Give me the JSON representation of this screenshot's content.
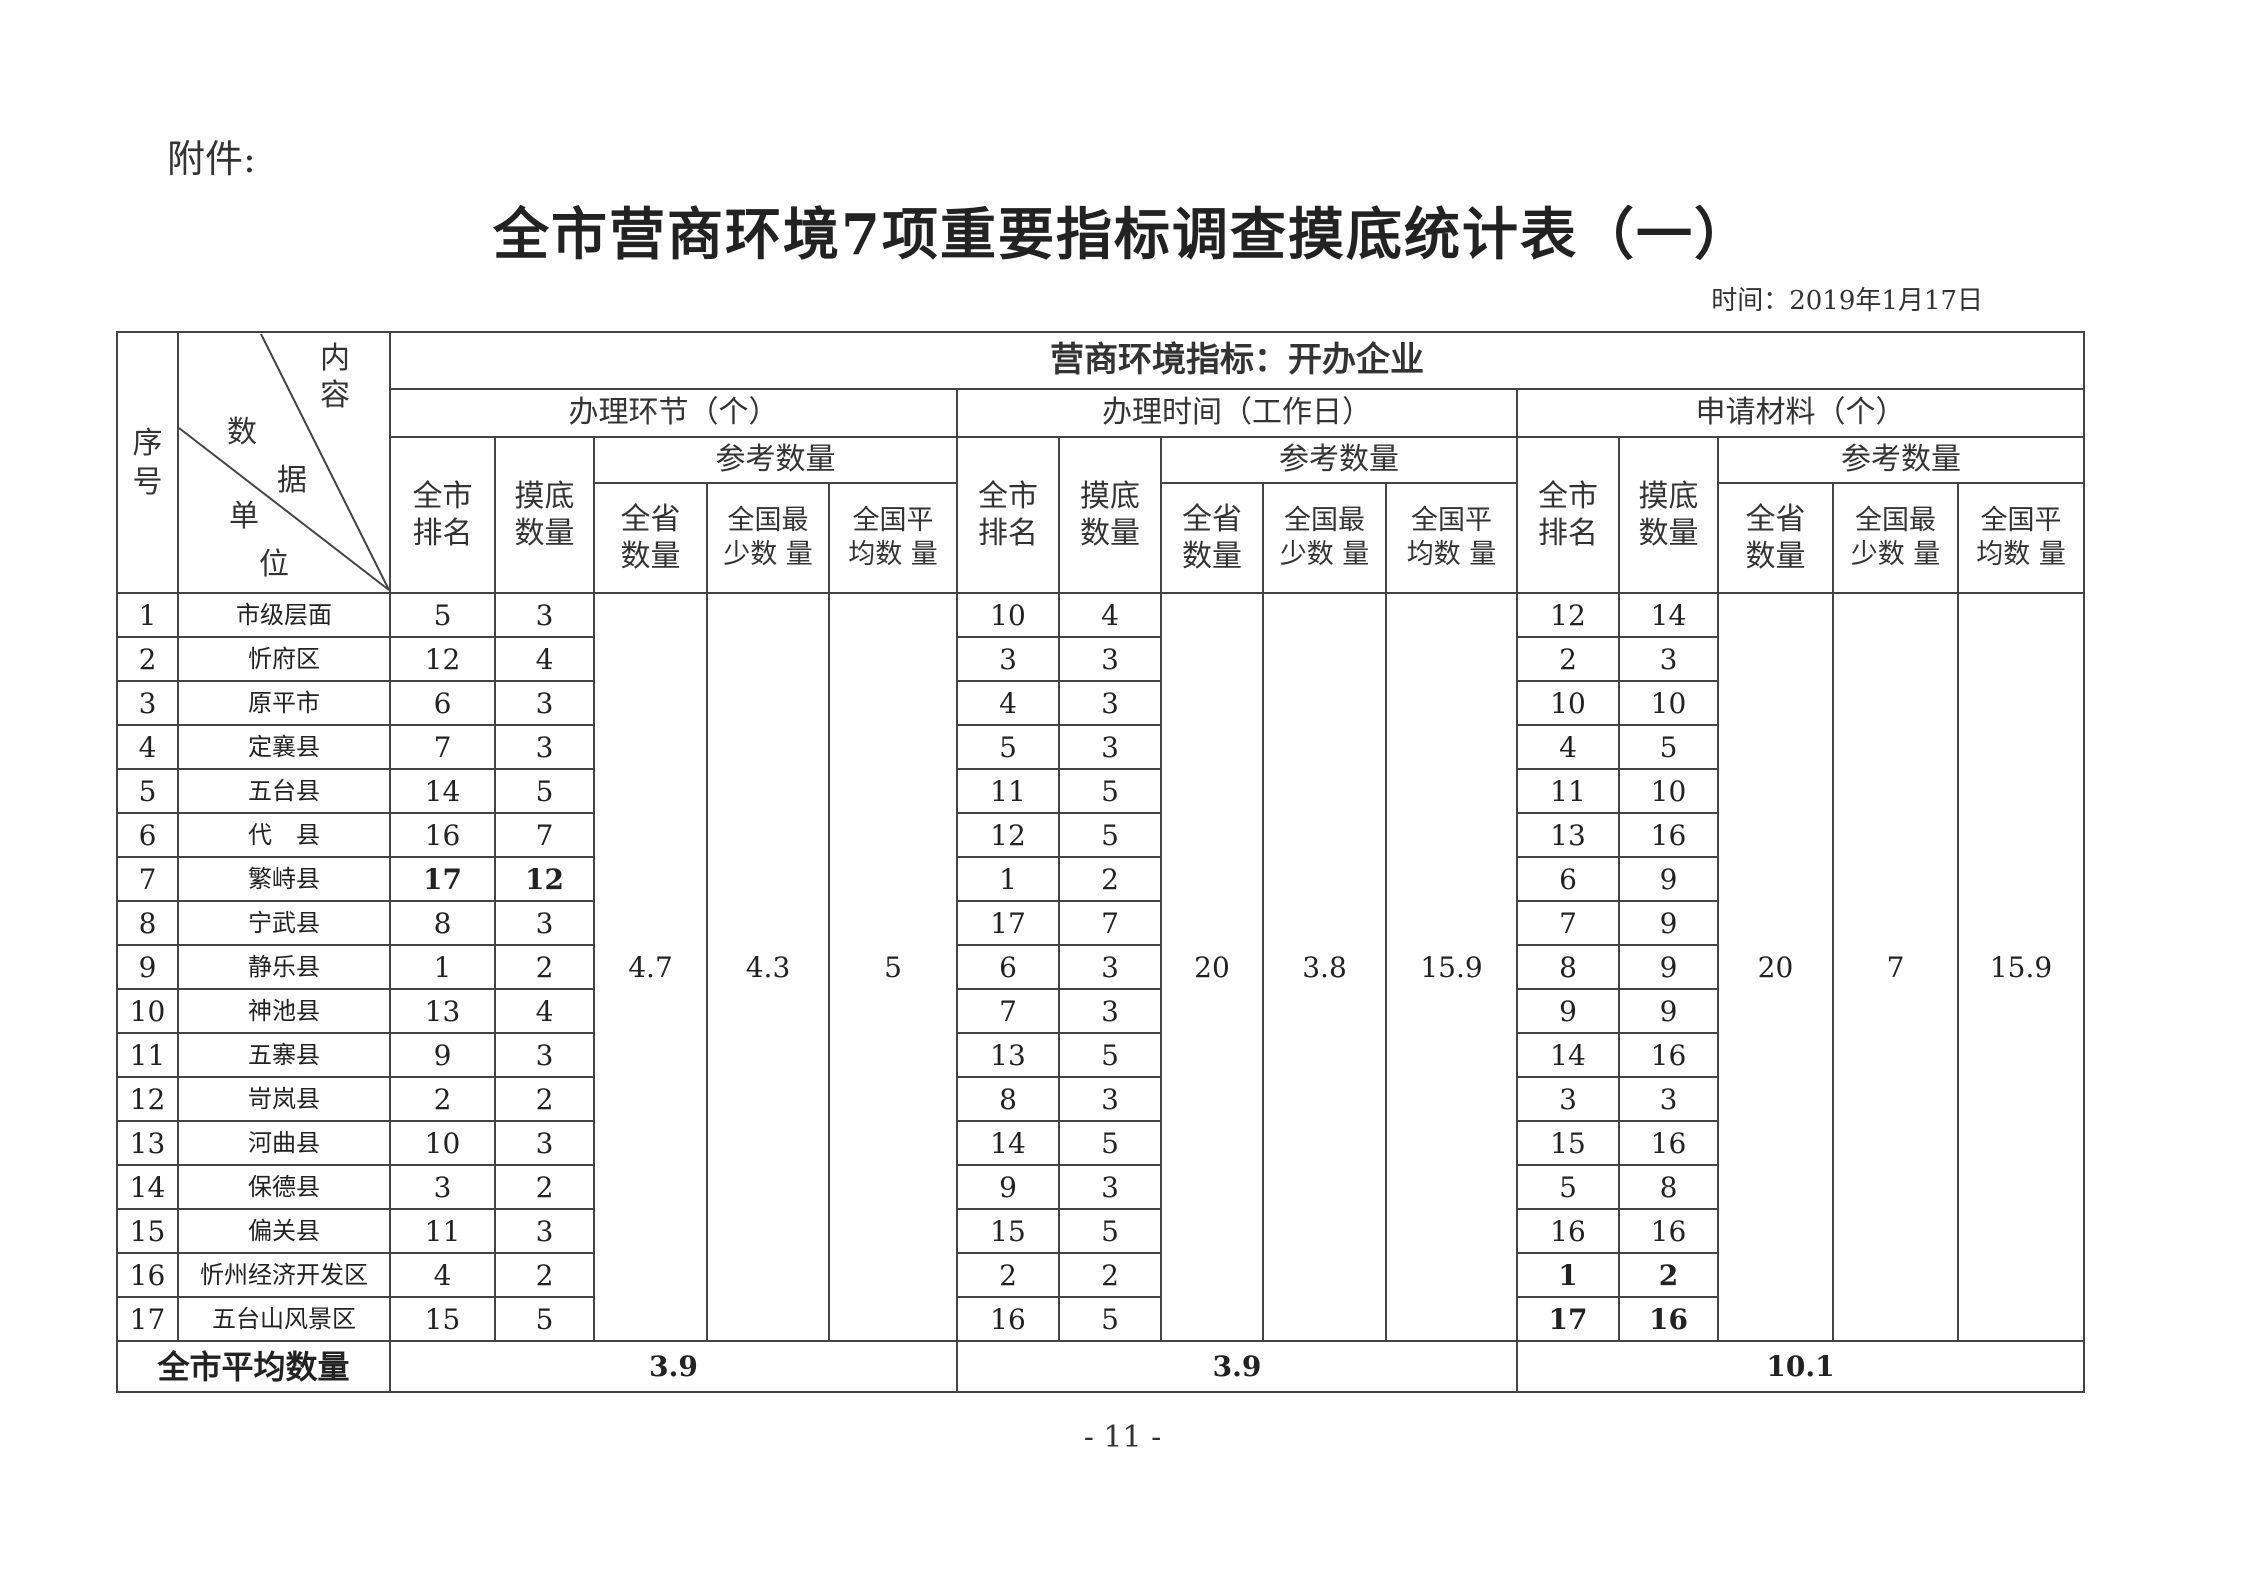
{
  "attachment_label": "附件:",
  "title": "全市营商环境7项重要指标调查摸底统计表（一）",
  "date": "时间：2019年1月17日",
  "header": {
    "seq": "序号",
    "diag": {
      "content": "内容",
      "content2": "容",
      "data": "数",
      "data2": "据",
      "unit": "单",
      "unit2": "位"
    },
    "indicator": "营商环境指标：开办企业",
    "groups": [
      "办理环节（个）",
      "办理时间（工作日）",
      "申请材料（个）"
    ],
    "city_rank": "全市排名",
    "survey_qty": "摸底数量",
    "reference": "参考数量",
    "province_qty": "全省数量",
    "national_min": "全国最少数 量",
    "national_avg": "全国平均数 量"
  },
  "rows": [
    {
      "no": "1",
      "unit": "市级层面",
      "g1": [
        "5",
        "3"
      ],
      "g2": [
        "10",
        "4"
      ],
      "g3": [
        "12",
        "14"
      ]
    },
    {
      "no": "2",
      "unit": "忻府区",
      "g1": [
        "12",
        "4"
      ],
      "g2": [
        "3",
        "3"
      ],
      "g3": [
        "2",
        "3"
      ]
    },
    {
      "no": "3",
      "unit": "原平市",
      "g1": [
        "6",
        "3"
      ],
      "g2": [
        "4",
        "3"
      ],
      "g3": [
        "10",
        "10"
      ]
    },
    {
      "no": "4",
      "unit": "定襄县",
      "g1": [
        "7",
        "3"
      ],
      "g2": [
        "5",
        "3"
      ],
      "g3": [
        "4",
        "5"
      ]
    },
    {
      "no": "5",
      "unit": "五台县",
      "g1": [
        "14",
        "5"
      ],
      "g2": [
        "11",
        "5"
      ],
      "g3": [
        "11",
        "10"
      ]
    },
    {
      "no": "6",
      "unit": "代　县",
      "g1": [
        "16",
        "7"
      ],
      "g2": [
        "12",
        "5"
      ],
      "g3": [
        "13",
        "16"
      ]
    },
    {
      "no": "7",
      "unit": "繁峙县",
      "g1": [
        "17",
        "12"
      ],
      "g2": [
        "1",
        "2"
      ],
      "g3": [
        "6",
        "9"
      ]
    },
    {
      "no": "8",
      "unit": "宁武县",
      "g1": [
        "8",
        "3"
      ],
      "g2": [
        "17",
        "7"
      ],
      "g3": [
        "7",
        "9"
      ]
    },
    {
      "no": "9",
      "unit": "静乐县",
      "g1": [
        "1",
        "2"
      ],
      "g2": [
        "6",
        "3"
      ],
      "g3": [
        "8",
        "9"
      ]
    },
    {
      "no": "10",
      "unit": "神池县",
      "g1": [
        "13",
        "4"
      ],
      "g2": [
        "7",
        "3"
      ],
      "g3": [
        "9",
        "9"
      ]
    },
    {
      "no": "11",
      "unit": "五寨县",
      "g1": [
        "9",
        "3"
      ],
      "g2": [
        "13",
        "5"
      ],
      "g3": [
        "14",
        "16"
      ]
    },
    {
      "no": "12",
      "unit": "岢岚县",
      "g1": [
        "2",
        "2"
      ],
      "g2": [
        "8",
        "3"
      ],
      "g3": [
        "3",
        "3"
      ]
    },
    {
      "no": "13",
      "unit": "河曲县",
      "g1": [
        "10",
        "3"
      ],
      "g2": [
        "14",
        "5"
      ],
      "g3": [
        "15",
        "16"
      ]
    },
    {
      "no": "14",
      "unit": "保德县",
      "g1": [
        "3",
        "2"
      ],
      "g2": [
        "9",
        "3"
      ],
      "g3": [
        "5",
        "8"
      ]
    },
    {
      "no": "15",
      "unit": "偏关县",
      "g1": [
        "11",
        "3"
      ],
      "g2": [
        "15",
        "5"
      ],
      "g3": [
        "16",
        "16"
      ]
    },
    {
      "no": "16",
      "unit": "忻州经济开发区",
      "g1": [
        "4",
        "2"
      ],
      "g2": [
        "2",
        "2"
      ],
      "g3": [
        "1",
        "2"
      ]
    },
    {
      "no": "17",
      "unit": "五台山风景区",
      "g1": [
        "15",
        "5"
      ],
      "g2": [
        "16",
        "5"
      ],
      "g3": [
        "17",
        "16"
      ]
    }
  ],
  "bold_cells": {
    "g1": [
      6
    ],
    "g2": [],
    "g3": [
      15,
      16
    ]
  },
  "reference_values": {
    "g1": [
      "4.7",
      "4.3",
      "5"
    ],
    "g2": [
      "20",
      "3.8",
      "15.9"
    ],
    "g3": [
      "20",
      "7",
      "15.9"
    ]
  },
  "city_average": {
    "label": "全市平均数量",
    "g1": "3.9",
    "g2": "3.9",
    "g3": "10.1"
  },
  "page_number": "- 11 -"
}
